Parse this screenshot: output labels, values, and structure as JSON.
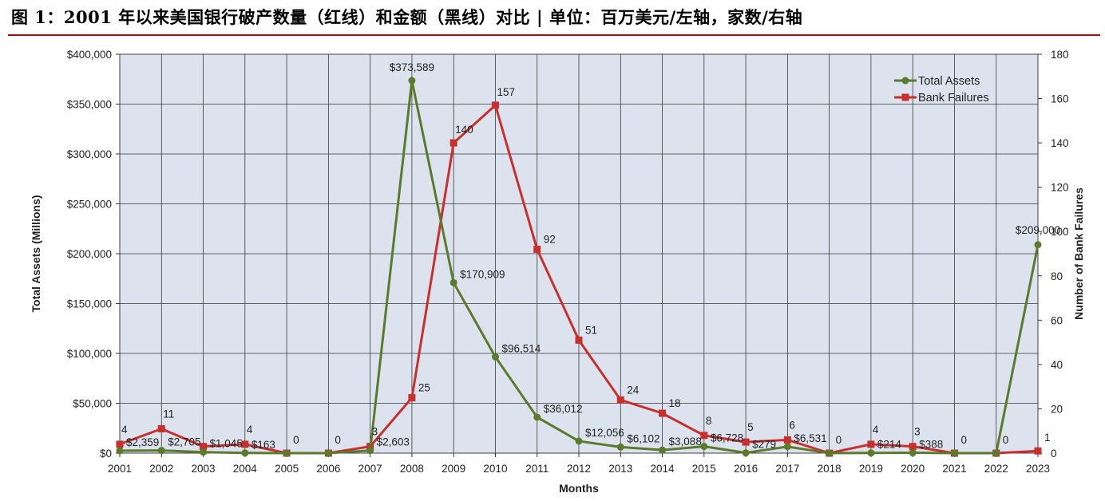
{
  "figure_title": "图 1：2001 年以来美国银行破产数量（红线）和金额（黑线）对比 | 单位：百万美元/左轴，家数/右轴",
  "colors": {
    "assets": "#5a7a2c",
    "failures": "#c8302e",
    "plot_bg": "#dde3ee",
    "grid": "#3a3a3a",
    "title_rule": "#c00000"
  },
  "chart_data": {
    "type": "line",
    "xlabel": "Months",
    "ylabel": "Total Assets (Millions)",
    "y2label": "Number of Bank Failures",
    "categories": [
      "2001",
      "2002",
      "2003",
      "2004",
      "2005",
      "2006",
      "2007",
      "2008",
      "2009",
      "2010",
      "2011",
      "2012",
      "2013",
      "2014",
      "2015",
      "2016",
      "2017",
      "2018",
      "2019",
      "2020",
      "2021",
      "2022",
      "2023"
    ],
    "ylim": [
      0,
      400000
    ],
    "y2lim": [
      0,
      180
    ],
    "yticks": [
      "$0",
      "$50,000",
      "$100,000",
      "$150,000",
      "$200,000",
      "$250,000",
      "$300,000",
      "$350,000",
      "$400,000"
    ],
    "y2ticks": [
      "0",
      "20",
      "40",
      "60",
      "80",
      "100",
      "120",
      "140",
      "160",
      "180"
    ],
    "grid": true,
    "legend_position": "top-right",
    "series": [
      {
        "name": "Total Assets",
        "axis": "left",
        "values": [
          2359,
          2705,
          1045,
          163,
          0,
          0,
          2603,
          373589,
          170909,
          96514,
          36012,
          12056,
          6102,
          3088,
          6728,
          279,
          6531,
          0,
          214,
          388,
          0,
          0,
          209000
        ],
        "labels": [
          "$2,359",
          "$2,705",
          "$1,045",
          "$163",
          "",
          "",
          "$2,603",
          "$373,589",
          "$170,909",
          "$96,514",
          "$36,012",
          "$12,056",
          "$6,102",
          "$3,088",
          "$6,728",
          "$279",
          "$6,531",
          "",
          "$214",
          "$388",
          "",
          "",
          "$209,000"
        ]
      },
      {
        "name": "Bank Failures",
        "axis": "right",
        "values": [
          4,
          11,
          3,
          4,
          0,
          0,
          3,
          25,
          140,
          157,
          92,
          51,
          24,
          18,
          8,
          5,
          6,
          0,
          4,
          3,
          0,
          0,
          1
        ],
        "labels": [
          "4",
          "11",
          "",
          "4",
          "0",
          "0",
          "3",
          "25",
          "140",
          "157",
          "92",
          "51",
          "24",
          "18",
          "8",
          "5",
          "6",
          "0",
          "4",
          "3",
          "0",
          "0",
          "1"
        ]
      }
    ]
  }
}
